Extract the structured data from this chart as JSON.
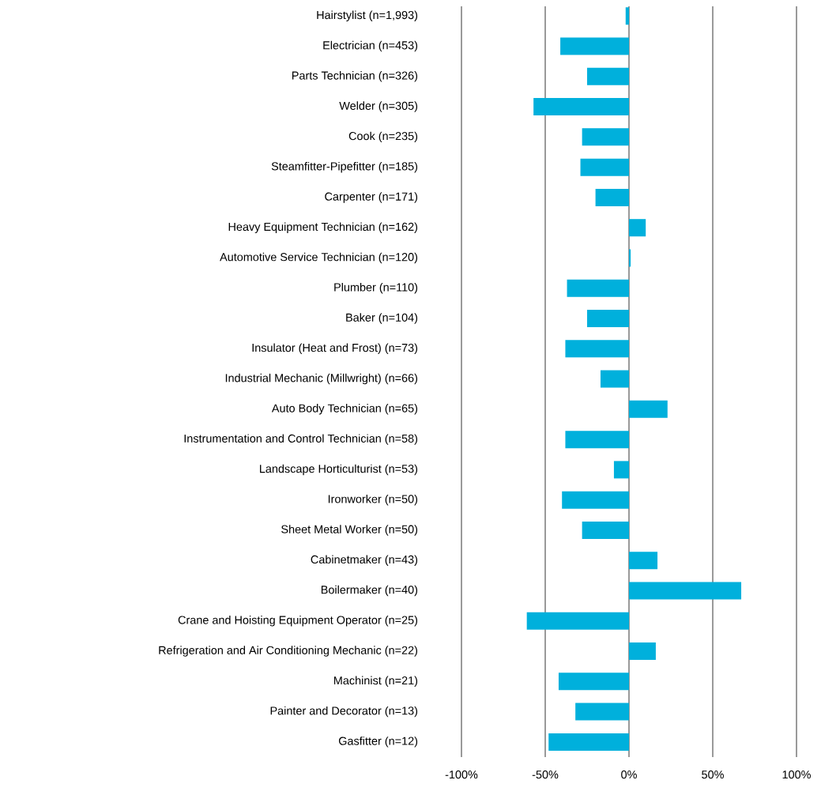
{
  "chart_data": {
    "type": "bar",
    "orientation": "horizontal",
    "categories": [
      "Hairstylist (n=1,993)",
      "Electrician (n=453)",
      "Parts Technician (n=326)",
      "Welder (n=305)",
      "Cook (n=235)",
      "Steamfitter-Pipefitter (n=185)",
      "Carpenter  (n=171)",
      "Heavy Equipment Technician (n=162)",
      "Automotive Service Technician (n=120)",
      "Plumber (n=110)",
      "Baker (n=104)",
      "Insulator (Heat and Frost) (n=73)",
      "Industrial Mechanic (Millwright) (n=66)",
      "Auto Body Technician (n=65)",
      "Instrumentation and Control Technician (n=58)",
      "Landscape Horticulturist (n=53)",
      "Ironworker (n=50)",
      "Sheet Metal Worker (n=50)",
      "Cabinetmaker (n=43)",
      "Boilermaker (n=40)",
      "Crane and Hoisting Equipment Operator (n=25)",
      "Refrigeration and Air Conditioning Mechanic (n=22)",
      "Machinist (n=21)",
      "Painter and Decorator (n=13)",
      "Gasfitter (n=12)"
    ],
    "values": [
      -2,
      -41,
      -25,
      -57,
      -28,
      -29,
      -20,
      10,
      1,
      -37,
      -25,
      -38,
      -17,
      23,
      -38,
      -9,
      -40,
      -28,
      17,
      67,
      -61,
      16,
      -42,
      -32,
      -48
    ],
    "color": "#00b0dc",
    "xlim": [
      -100,
      100
    ],
    "xticks": [
      {
        "value": -100,
        "label": "-100%"
      },
      {
        "value": -50,
        "label": "-50%"
      },
      {
        "value": 0,
        "label": "0%"
      },
      {
        "value": 50,
        "label": "50%"
      },
      {
        "value": 100,
        "label": "100%"
      }
    ],
    "grid": "x"
  }
}
